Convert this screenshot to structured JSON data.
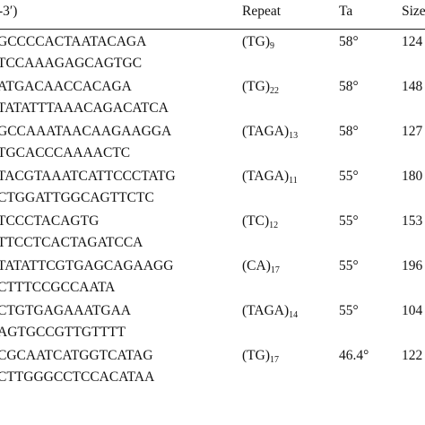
{
  "table": {
    "header": [
      "-3′)",
      "Repeat",
      "Ta",
      "Size"
    ],
    "rows": [
      {
        "primers": [
          "GCCCCACTAATACAGA",
          "TCCAAAGAGCAGTGC"
        ],
        "repeat": {
          "unit": "(TG)",
          "count": "9"
        },
        "ta": "58°",
        "size": "124"
      },
      {
        "primers": [
          "ATGACAACCACAGA",
          "TATATTTAAACAGACATCA"
        ],
        "repeat": {
          "unit": "(TG)",
          "count": "22"
        },
        "ta": "58°",
        "size": "148"
      },
      {
        "primers": [
          "GCCAAATAACAAGAAGGA",
          "TGCACCCAAAACTC"
        ],
        "repeat": {
          "unit": "(TAGA)",
          "count": "13"
        },
        "ta": "58°",
        "size": "127"
      },
      {
        "primers": [
          "TACGTAAATCATTCCCTATG",
          "CTGGATTGGCAGTTCTC"
        ],
        "repeat": {
          "unit": "(TAGA)",
          "count": "11"
        },
        "ta": "55°",
        "size": "180"
      },
      {
        "primers": [
          "TCCCTACAGTG",
          "TTCCTCACTAGATCCA"
        ],
        "repeat": {
          "unit": "(TC)",
          "count": "12"
        },
        "ta": "55°",
        "size": "153"
      },
      {
        "primers": [
          "TATATTCGTGAGCAGAAGG",
          "CTTTCCGCCAATA"
        ],
        "repeat": {
          "unit": "(CA)",
          "count": "17"
        },
        "ta": "55°",
        "size": "196"
      },
      {
        "primers": [
          "CTGTGAGAAATGAA",
          "AGTGCCGTTGTTTT"
        ],
        "repeat": {
          "unit": "(TAGA)",
          "count": "14"
        },
        "ta": "55°",
        "size": "104"
      },
      {
        "primers": [
          "CGCAATCATGGTCATAG",
          "CTTGGGCCTCCACATAA"
        ],
        "repeat": {
          "unit": "(TG)",
          "count": "17"
        },
        "ta": "46.4°",
        "size": "122"
      }
    ]
  }
}
